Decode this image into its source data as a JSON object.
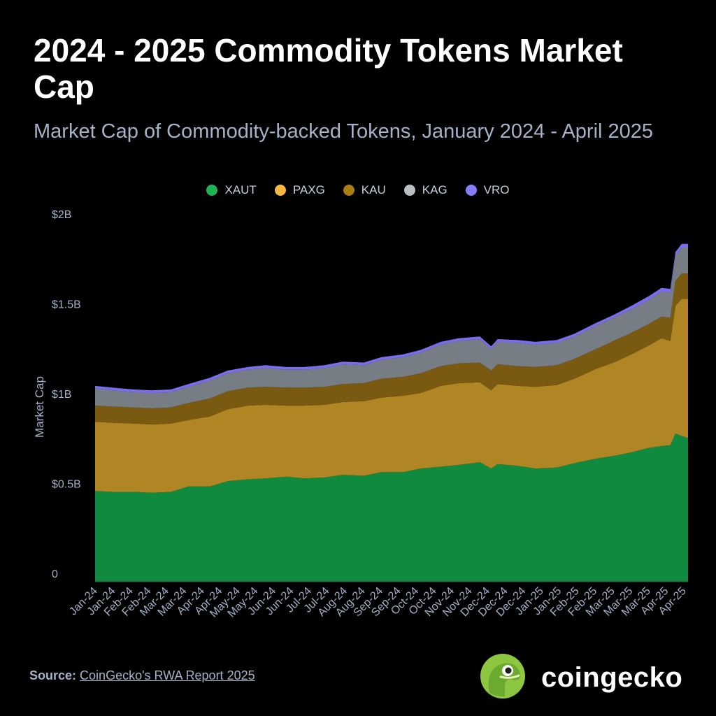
{
  "header": {
    "title": "2024 - 2025 Commodity Tokens Market Cap",
    "subtitle": "Market Cap of Commodity-backed Tokens, January 2024 - April 2025"
  },
  "legend": [
    {
      "name": "XAUT",
      "color": "#0f8a3f"
    },
    {
      "name": "PAXG",
      "color": "#b08524"
    },
    {
      "name": "KAU",
      "color": "#7a5a10"
    },
    {
      "name": "KAG",
      "color": "#767d84"
    },
    {
      "name": "VRO",
      "color": "#7b6cf0"
    }
  ],
  "legend_dot_colors": {
    "XAUT": "#1fb356",
    "PAXG": "#f4b942",
    "KAU": "#a97d12",
    "KAG": "#b8bec4",
    "VRO": "#8a7cff"
  },
  "chart_data": {
    "type": "area",
    "stacked": true,
    "title": "2024 - 2025 Commodity Tokens Market Cap",
    "subtitle": "Market Cap of Commodity-backed Tokens, January 2024 - April 2025",
    "ylabel": "Market Cap",
    "xlabel": "",
    "ylim": [
      0,
      2000000000
    ],
    "yticks": [
      {
        "value": 0,
        "label": "0"
      },
      {
        "value": 500000000,
        "label": "$0.5B"
      },
      {
        "value": 1000000000,
        "label": "$1B"
      },
      {
        "value": 1500000000,
        "label": "$1.5B"
      },
      {
        "value": 2000000000,
        "label": "$2B"
      }
    ],
    "grid": false,
    "legend_position": "top",
    "x_tick_labels": [
      "Jan-24",
      "Jan-24",
      "Feb-24",
      "Feb-24",
      "Mar-24",
      "Mar-24",
      "Apr-24",
      "Apr-24",
      "May-24",
      "May-24",
      "Jun-24",
      "Jun-24",
      "Jul-24",
      "Jul-24",
      "Aug-24",
      "Aug-24",
      "Sep-24",
      "Sep-24",
      "Oct-24",
      "Oct-24",
      "Nov-24",
      "Nov-24",
      "Dec-24",
      "Dec-24",
      "Dec-24",
      "Jan-25",
      "Jan-25",
      "Feb-25",
      "Feb-25",
      "Mar-25",
      "Mar-25",
      "Mar-25",
      "Apr-25",
      "Apr-25"
    ],
    "x": [
      "2024-01-01",
      "2024-01-15",
      "2024-02-01",
      "2024-02-15",
      "2024-03-01",
      "2024-03-15",
      "2024-04-01",
      "2024-04-15",
      "2024-05-01",
      "2024-05-15",
      "2024-06-01",
      "2024-06-15",
      "2024-07-01",
      "2024-07-15",
      "2024-08-01",
      "2024-08-15",
      "2024-09-01",
      "2024-09-15",
      "2024-10-01",
      "2024-10-15",
      "2024-11-01",
      "2024-11-10",
      "2024-11-15",
      "2024-12-01",
      "2024-12-15",
      "2025-01-01",
      "2025-01-15",
      "2025-02-01",
      "2025-02-15",
      "2025-03-01",
      "2025-03-15",
      "2025-03-25",
      "2025-04-01",
      "2025-04-05",
      "2025-04-10",
      "2025-04-15"
    ],
    "series": [
      {
        "name": "XAUT",
        "values": [
          0.505,
          0.5,
          0.5,
          0.495,
          0.5,
          0.53,
          0.53,
          0.56,
          0.57,
          0.575,
          0.585,
          0.575,
          0.58,
          0.595,
          0.59,
          0.61,
          0.61,
          0.63,
          0.64,
          0.65,
          0.665,
          0.63,
          0.655,
          0.645,
          0.63,
          0.635,
          0.66,
          0.685,
          0.7,
          0.72,
          0.745,
          0.755,
          0.76,
          0.825,
          0.81,
          0.8
        ]
      },
      {
        "name": "PAXG",
        "values": [
          0.385,
          0.385,
          0.38,
          0.38,
          0.38,
          0.37,
          0.39,
          0.4,
          0.41,
          0.41,
          0.395,
          0.405,
          0.405,
          0.405,
          0.415,
          0.415,
          0.425,
          0.42,
          0.45,
          0.455,
          0.445,
          0.435,
          0.445,
          0.445,
          0.455,
          0.46,
          0.47,
          0.5,
          0.52,
          0.545,
          0.57,
          0.6,
          0.58,
          0.71,
          0.765,
          0.775
        ]
      },
      {
        "name": "KAU",
        "values": [
          0.09,
          0.09,
          0.09,
          0.09,
          0.09,
          0.095,
          0.1,
          0.1,
          0.1,
          0.1,
          0.1,
          0.1,
          0.1,
          0.1,
          0.1,
          0.105,
          0.105,
          0.11,
          0.11,
          0.11,
          0.11,
          0.11,
          0.11,
          0.11,
          0.11,
          0.11,
          0.11,
          0.11,
          0.12,
          0.12,
          0.12,
          0.12,
          0.13,
          0.14,
          0.14,
          0.14
        ]
      },
      {
        "name": "KAG",
        "values": [
          0.095,
          0.09,
          0.085,
          0.085,
          0.085,
          0.09,
          0.1,
          0.1,
          0.1,
          0.105,
          0.1,
          0.1,
          0.105,
          0.11,
          0.1,
          0.105,
          0.11,
          0.115,
          0.12,
          0.125,
          0.13,
          0.12,
          0.125,
          0.13,
          0.125,
          0.125,
          0.125,
          0.13,
          0.13,
          0.13,
          0.135,
          0.14,
          0.14,
          0.14,
          0.145,
          0.145
        ]
      },
      {
        "name": "VRO",
        "values": [
          0.015,
          0.015,
          0.015,
          0.015,
          0.015,
          0.015,
          0.015,
          0.015,
          0.015,
          0.015,
          0.015,
          0.015,
          0.015,
          0.015,
          0.015,
          0.015,
          0.015,
          0.015,
          0.015,
          0.015,
          0.015,
          0.015,
          0.015,
          0.015,
          0.015,
          0.015,
          0.015,
          0.015,
          0.015,
          0.02,
          0.02,
          0.02,
          0.02,
          0.02,
          0.02,
          0.02
        ]
      }
    ],
    "value_unit_multiplier": 1000000000
  },
  "footer": {
    "source_label": "Source:",
    "source_text": "CoinGecko's RWA Report 2025",
    "brand": "coingecko"
  }
}
